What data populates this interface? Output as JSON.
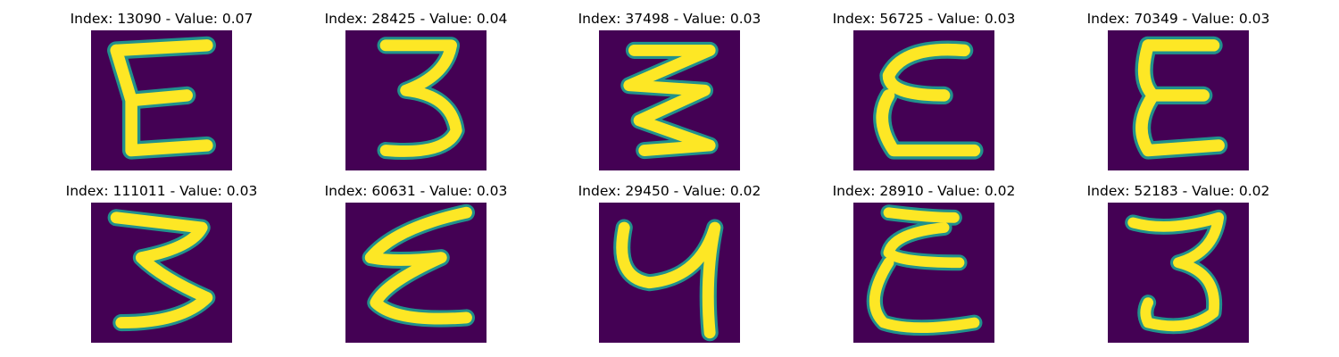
{
  "colors": {
    "background": "#440154",
    "stroke": "#fde725",
    "edge": "#21918c"
  },
  "panels": [
    {
      "title": "Index: 13090 - Value: 0.07",
      "glyph": "E"
    },
    {
      "title": "Index: 28425 - Value: 0.04",
      "glyph": "3"
    },
    {
      "title": "Index: 37498 - Value: 0.03",
      "glyph": "zigzag"
    },
    {
      "title": "Index: 56725 - Value: 0.03",
      "glyph": "E"
    },
    {
      "title": "Index: 70349 - Value: 0.03",
      "glyph": "E"
    },
    {
      "title": "Index: 111011 - Value: 0.03",
      "glyph": "3"
    },
    {
      "title": "Index: 60631 - Value: 0.03",
      "glyph": "zigzag"
    },
    {
      "title": "Index: 29450 - Value: 0.02",
      "glyph": "4"
    },
    {
      "title": "Index: 28910 - Value: 0.02",
      "glyph": "E"
    },
    {
      "title": "Index: 52183 - Value: 0.02",
      "glyph": "3"
    }
  ]
}
